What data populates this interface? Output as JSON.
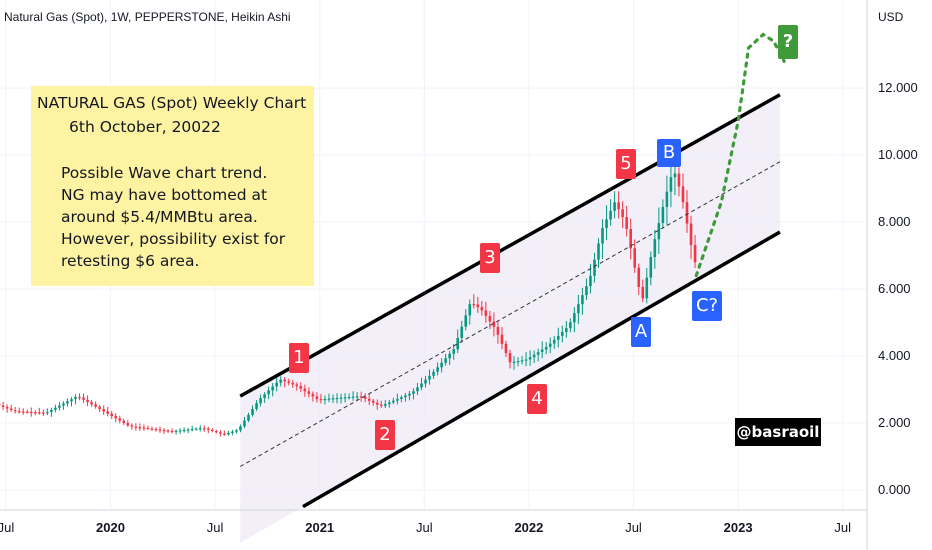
{
  "header": {
    "title": "Natural Gas (Spot), 1W, PEPPERSTONE, Heikin Ashi"
  },
  "note": {
    "line1": "NATURAL GAS (Spot) Weekly Chart",
    "line2": "6th October, 20022",
    "body": [
      "Possible Wave chart trend.",
      "NG may have bottomed at",
      "around $5.4/MMBtu area.",
      "However, possibility exist for",
      "retesting $6 area."
    ]
  },
  "wave_labels": {
    "w1": "1",
    "w2": "2",
    "w3": "3",
    "w4": "4",
    "w5": "5",
    "wA": "A",
    "wB": "B",
    "wC": "C?",
    "target": "?"
  },
  "handle": "@basraoil",
  "colors": {
    "up": "#089981",
    "down": "#f23645",
    "channel_fill": "#ede9f7",
    "projection": "#3f9a3a",
    "note_bg": "#fdf3a3"
  },
  "chart_data": {
    "type": "candlestick",
    "title": "Natural Gas (Spot), 1W, PEPPERSTONE, Heikin Ashi",
    "currency": "USD",
    "y_ticks": [
      "0.000",
      "2.000",
      "4.000",
      "6.000",
      "8.000",
      "10.000",
      "12.000"
    ],
    "y_range": [
      -0.6,
      14.6
    ],
    "x_ticks": [
      {
        "label": "Jul",
        "t": 2019.5,
        "bold": false
      },
      {
        "label": "2020",
        "t": 2020.0,
        "bold": true
      },
      {
        "label": "Jul",
        "t": 2020.5,
        "bold": false
      },
      {
        "label": "2021",
        "t": 2021.0,
        "bold": true
      },
      {
        "label": "Jul",
        "t": 2021.5,
        "bold": false
      },
      {
        "label": "2022",
        "t": 2022.0,
        "bold": true
      },
      {
        "label": "Jul",
        "t": 2022.5,
        "bold": false
      },
      {
        "label": "2023",
        "t": 2023.0,
        "bold": true
      },
      {
        "label": "Jul",
        "t": 2023.5,
        "bold": false
      }
    ],
    "x_range": [
      2019.4,
      2023.75
    ],
    "price_path": [
      [
        2019.4,
        2.7
      ],
      [
        2019.55,
        2.35
      ],
      [
        2019.7,
        2.3
      ],
      [
        2019.85,
        2.8
      ],
      [
        2019.92,
        2.55
      ],
      [
        2020.1,
        1.9
      ],
      [
        2020.3,
        1.75
      ],
      [
        2020.45,
        1.85
      ],
      [
        2020.55,
        1.65
      ],
      [
        2020.62,
        1.8
      ],
      [
        2020.72,
        2.7
      ],
      [
        2020.82,
        3.3
      ],
      [
        2020.9,
        3.1
      ],
      [
        2021.0,
        2.7
      ],
      [
        2021.1,
        2.75
      ],
      [
        2021.2,
        2.8
      ],
      [
        2021.3,
        2.5
      ],
      [
        2021.45,
        2.9
      ],
      [
        2021.55,
        3.5
      ],
      [
        2021.65,
        4.2
      ],
      [
        2021.73,
        5.6
      ],
      [
        2021.78,
        5.4
      ],
      [
        2021.85,
        4.8
      ],
      [
        2021.92,
        3.8
      ],
      [
        2022.0,
        3.9
      ],
      [
        2022.1,
        4.3
      ],
      [
        2022.2,
        4.9
      ],
      [
        2022.3,
        6.3
      ],
      [
        2022.36,
        7.8
      ],
      [
        2022.42,
        8.6
      ],
      [
        2022.47,
        8.0
      ],
      [
        2022.52,
        6.5
      ],
      [
        2022.55,
        5.6
      ],
      [
        2022.6,
        7.2
      ],
      [
        2022.66,
        8.7
      ],
      [
        2022.7,
        9.6
      ],
      [
        2022.74,
        8.8
      ],
      [
        2022.77,
        7.8
      ],
      [
        2022.8,
        6.8
      ]
    ],
    "channel": {
      "upper": [
        [
          2020.62,
          2.8
        ],
        [
          2023.2,
          11.8
        ]
      ],
      "middle": [
        [
          2020.62,
          0.7
        ],
        [
          2023.2,
          9.8
        ]
      ],
      "lower": [
        [
          2020.92,
          -0.5
        ],
        [
          2023.2,
          7.7
        ]
      ]
    },
    "projection": [
      [
        2022.8,
        6.4
      ],
      [
        2022.92,
        8.6
      ],
      [
        2023.0,
        11.0
      ],
      [
        2023.05,
        13.2
      ],
      [
        2023.12,
        13.6
      ],
      [
        2023.17,
        13.4
      ],
      [
        2023.22,
        12.8
      ]
    ],
    "annotations": [
      {
        "label": "1",
        "t": 2020.8,
        "y": 4.0
      },
      {
        "label": "2",
        "t": 2021.22,
        "y": 1.7
      },
      {
        "label": "3",
        "t": 2021.74,
        "y": 6.9
      },
      {
        "label": "4",
        "t": 2021.97,
        "y": 2.8
      },
      {
        "label": "5",
        "t": 2022.43,
        "y": 9.8
      },
      {
        "label": "A",
        "t": 2022.52,
        "y": 4.8
      },
      {
        "label": "B",
        "t": 2022.65,
        "y": 10.3
      },
      {
        "label": "C?",
        "t": 2022.8,
        "y": 5.6
      },
      {
        "label": "?",
        "t": 2023.22,
        "y": 13.7
      }
    ]
  }
}
